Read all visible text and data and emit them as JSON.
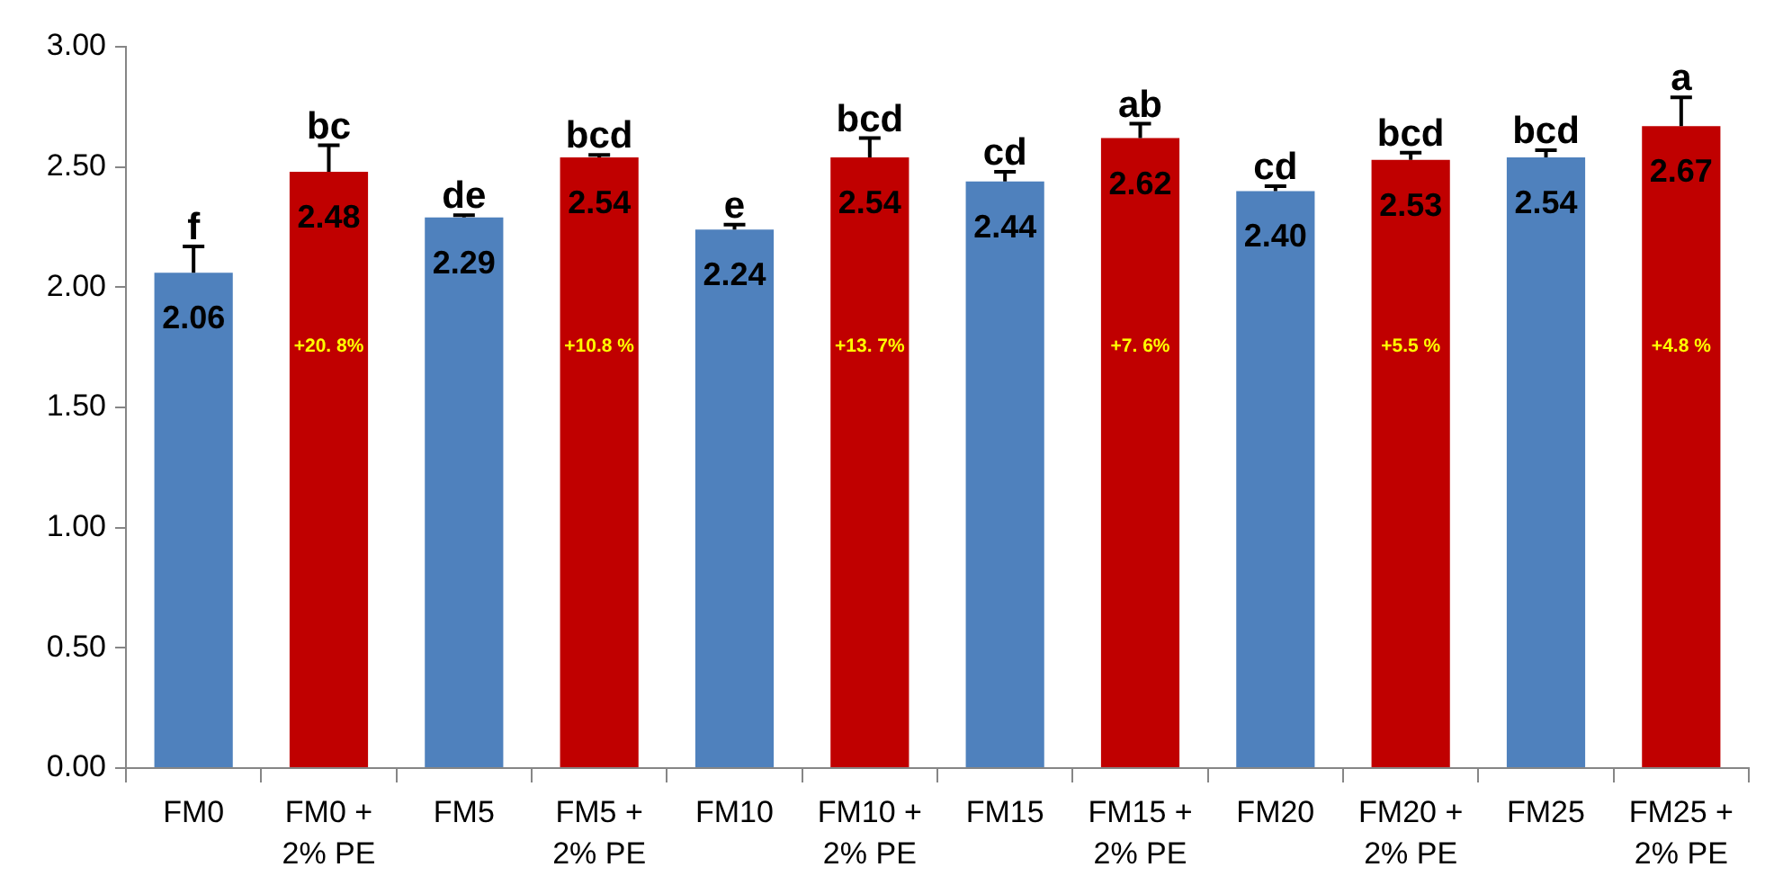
{
  "chart_data": {
    "type": "bar",
    "categories": [
      "FM0",
      "FM0 + 2% PE",
      "FM5",
      "FM5 + 2% PE",
      "FM10",
      "FM10 + 2% PE",
      "FM15",
      "FM15 + 2% PE",
      "FM20",
      "FM20 + 2% PE",
      "FM25",
      "FM25 + 2% PE"
    ],
    "values": [
      2.06,
      2.48,
      2.29,
      2.54,
      2.24,
      2.54,
      2.44,
      2.62,
      2.4,
      2.53,
      2.54,
      2.67
    ],
    "colors": [
      "#4f81bd",
      "#c00000",
      "#4f81bd",
      "#c00000",
      "#4f81bd",
      "#c00000",
      "#4f81bd",
      "#c00000",
      "#4f81bd",
      "#c00000",
      "#4f81bd",
      "#c00000"
    ],
    "value_labels": [
      "2.06",
      "2.48",
      "2.29",
      "2.54",
      "2.24",
      "2.54",
      "2.44",
      "2.62",
      "2.40",
      "2.53",
      "2.54",
      "2.67"
    ],
    "errors": [
      [
        2.06,
        2.17
      ],
      [
        2.48,
        2.59
      ],
      [
        2.29,
        2.3
      ],
      [
        2.54,
        2.55
      ],
      [
        2.24,
        2.26
      ],
      [
        2.54,
        2.62
      ],
      [
        2.44,
        2.48
      ],
      [
        2.62,
        2.68
      ],
      [
        2.4,
        2.42
      ],
      [
        2.53,
        2.56
      ],
      [
        2.54,
        2.57
      ],
      [
        2.67,
        2.79
      ]
    ],
    "annotations": [
      {
        "text": "f",
        "x": "FM0",
        "y": 2.17
      },
      {
        "text": "bc",
        "x": "FM0 + 2% PE",
        "y": 2.59
      },
      {
        "text": "de",
        "x": "FM5",
        "y": 2.3
      },
      {
        "text": "bcd",
        "x": "FM5 + 2% PE",
        "y": 2.55
      },
      {
        "text": "e",
        "x": "FM10",
        "y": 2.26
      },
      {
        "text": "bcd",
        "x": "FM10 + 2% PE",
        "y": 2.62
      },
      {
        "text": "cd",
        "x": "FM15",
        "y": 2.48
      },
      {
        "text": "ab",
        "x": "FM15 + 2% PE",
        "y": 2.68
      },
      {
        "text": "cd",
        "x": "FM20",
        "y": 2.42
      },
      {
        "text": "bcd",
        "x": "FM20 + 2% PE",
        "y": 2.56
      },
      {
        "text": "bcd",
        "x": "FM25",
        "y": 2.57
      },
      {
        "text": "a",
        "x": "FM25 + 2% PE",
        "y": 2.79
      },
      "+20. 8%",
      "+10.8 %",
      "+13. 7%",
      "+7. 6%",
      "+5.5 %",
      "+4.8 %"
    ],
    "ylim": [
      0,
      3
    ],
    "yticks": [
      {
        "value": 0,
        "label": "0.00"
      },
      {
        "value": 0.5,
        "label": "0.50"
      },
      {
        "value": 1,
        "label": "1.00"
      },
      {
        "value": 1.5,
        "label": "1.50"
      },
      {
        "value": 2,
        "label": "2.00"
      },
      {
        "value": 2.5,
        "label": "2.50"
      },
      {
        "value": 3,
        "label": "3.00"
      }
    ],
    "grid": false,
    "legend": false
  }
}
